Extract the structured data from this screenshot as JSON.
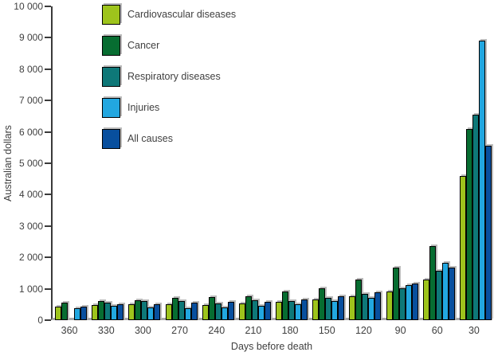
{
  "page": {
    "background": "#ffffff",
    "text_color": "#404040",
    "axis_color": "#3a3a3a",
    "baseline_color": "#a8a8a8",
    "bar_outline_color": "#000000",
    "bar_shadow_color": "#bcbcbc"
  },
  "chart_data": {
    "type": "bar",
    "title": "",
    "xlabel": "Days before death",
    "ylabel": "Australian dollars",
    "ylim": [
      0,
      10000
    ],
    "ytick_step": 1000,
    "ytick_values": [
      0,
      1000,
      2000,
      3000,
      4000,
      5000,
      6000,
      7000,
      8000,
      9000,
      10000
    ],
    "ytick_labels": [
      "0",
      "1 000",
      "2 000",
      "3 000",
      "4 000",
      "5 000",
      "6 000",
      "7 000",
      "8 000",
      "9 000",
      "10 000"
    ],
    "categories": [
      "360",
      "330",
      "300",
      "270",
      "240",
      "210",
      "180",
      "150",
      "120",
      "90",
      "60",
      "30"
    ],
    "grid": false,
    "legend_position": "top-left-inside",
    "series": [
      {
        "name": "Cardiovascular diseases",
        "color": "#9ec41c",
        "values": [
          430,
          480,
          500,
          500,
          470,
          540,
          580,
          660,
          750,
          920,
          1300,
          4600
        ]
      },
      {
        "name": "Cancer",
        "color": "#076d31",
        "values": [
          570,
          620,
          640,
          700,
          730,
          770,
          910,
          1020,
          1300,
          1670,
          2370,
          6100
        ]
      },
      {
        "name": "Respiratory diseases",
        "color": "#0e7878",
        "values": [
          0,
          550,
          600,
          600,
          530,
          630,
          620,
          720,
          850,
          1020,
          1570,
          6550
        ]
      },
      {
        "name": "Injuries",
        "color": "#22a7e0",
        "values": [
          370,
          450,
          410,
          390,
          400,
          450,
          500,
          620,
          700,
          1120,
          1830,
          8900
        ]
      },
      {
        "name": "All causes",
        "color": "#084f9e",
        "values": [
          440,
          510,
          520,
          560,
          580,
          590,
          670,
          770,
          900,
          1170,
          1670,
          5550
        ]
      }
    ]
  }
}
